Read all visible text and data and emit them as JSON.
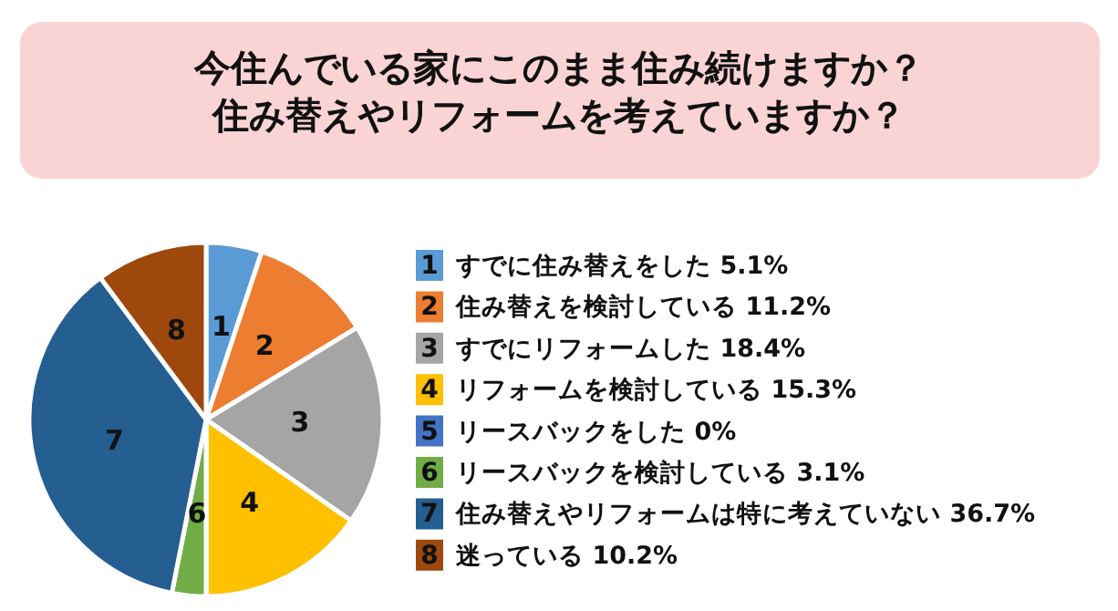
{
  "chart_data": {
    "type": "pie",
    "title": "今住んでいる家にこのまま住み続けますか？",
    "subtitle": "住み替えやリフォームを考えていますか？",
    "categories": [
      "すでに住み替えをした",
      "住み替えを検討している",
      "すでにリフォームした",
      "リフォームを検討している",
      "リースバックをした",
      "リースバックを検討している",
      "住み替えやリフォームは特に考えていない",
      "迷っている"
    ],
    "values": [
      5.1,
      11.2,
      18.4,
      15.3,
      0,
      3.1,
      36.7,
      10.2
    ],
    "value_labels": [
      "5.1%",
      "11.2%",
      "18.4%",
      "15.3%",
      "0%",
      "3.1%",
      "36.7%",
      "10.2%"
    ],
    "annotations": [
      "1",
      "2",
      "3",
      "4",
      "5",
      "6",
      "7",
      "8"
    ],
    "colors": [
      "#5b9bd5",
      "#ed7d31",
      "#a5a5a5",
      "#ffc000",
      "#4472c4",
      "#70ad47",
      "#255e91",
      "#9e480e"
    ],
    "legend": "right"
  }
}
